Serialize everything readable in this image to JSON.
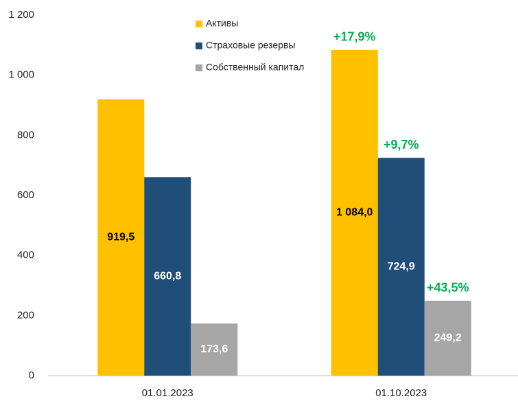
{
  "chart_data": {
    "type": "bar",
    "categories": [
      "01.01.2023",
      "01.10.2023"
    ],
    "series": [
      {
        "name": "Активы",
        "color": "#FFC000",
        "label_color": "#000000",
        "values": [
          919.5,
          1084.0
        ],
        "value_labels": [
          "919,5",
          "1 084,0"
        ],
        "change_labels": [
          null,
          "+17,9%"
        ]
      },
      {
        "name": "Страховые резервы",
        "color": "#1F4E79",
        "label_color": "#FFFFFF",
        "values": [
          660.8,
          724.9
        ],
        "value_labels": [
          "660,8",
          "724,9"
        ],
        "change_labels": [
          null,
          "+9,7%"
        ]
      },
      {
        "name": "Собственный капитал",
        "color": "#A6A6A6",
        "label_color": "#FFFFFF",
        "values": [
          173.6,
          249.2
        ],
        "value_labels": [
          "173,6",
          "249,2"
        ],
        "change_labels": [
          null,
          "+43,5%"
        ]
      }
    ],
    "change_color": "#00B050",
    "ylim": [
      0,
      1200
    ],
    "yticks": [
      0,
      200,
      400,
      600,
      800,
      {
        "value": 1000,
        "label": "1 000"
      },
      {
        "value": 1200,
        "label": "1 200"
      }
    ],
    "grid": false
  }
}
